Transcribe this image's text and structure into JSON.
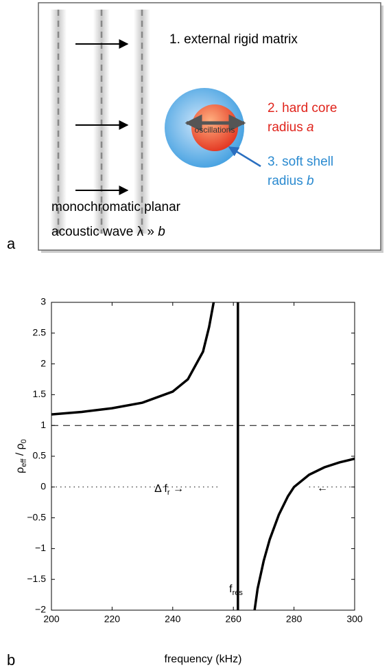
{
  "diagram": {
    "panel_label": "a",
    "matrix_label": "1. external rigid matrix",
    "core_label": "2. hard core",
    "core_radius": {
      "text": "radius",
      "var": "a"
    },
    "shell_label": "3. soft shell",
    "shell_radius": {
      "text": "radius",
      "var": "b"
    },
    "oscillations": "oscillations",
    "wave_line1": "monochromatic planar",
    "wave_line2": {
      "text": "acoustic wave λ »",
      "var": "b"
    }
  },
  "chart_data": {
    "type": "line",
    "panel_label": "b",
    "x_label": "frequency (kHz)",
    "y_label": {
      "main": "ρ",
      "sub": "eff",
      "mid": " / ρ",
      "sub2": "0"
    },
    "series": [
      {
        "x": [
          200,
          210,
          220,
          230,
          240,
          245,
          250,
          252,
          253.5,
          260,
          267,
          268,
          270,
          272,
          275,
          278,
          280,
          285,
          290,
          295,
          300
        ],
        "values": [
          1.18,
          1.22,
          1.28,
          1.37,
          1.55,
          1.75,
          2.2,
          2.6,
          3,
          null,
          -2,
          -1.65,
          -1.2,
          -0.85,
          -0.45,
          -0.15,
          0,
          0.2,
          0.32,
          0.4,
          0.46
        ],
        "color": "#000000",
        "style": "solid"
      },
      {
        "x": [
          261.5,
          261.5
        ],
        "values": [
          -2,
          3
        ],
        "color": "#000000",
        "style": "solid"
      },
      {
        "x": [
          200,
          300
        ],
        "values": [
          1,
          1
        ],
        "color": "#000000",
        "style": "dashed"
      },
      {
        "x": [
          200,
          255,
          270,
          285,
          300
        ],
        "values": [
          0,
          0,
          null,
          0,
          0
        ],
        "color": "#000000",
        "style": "dotted"
      }
    ],
    "annotations": [
      {
        "text": "Δ f",
        "sub": "r",
        "suffix": " →"
      },
      {
        "text": "f",
        "sub": "res"
      },
      {
        "text": "←"
      }
    ],
    "xlim": [
      200,
      300
    ],
    "ylim": [
      -2,
      3
    ],
    "xticks": [
      200,
      220,
      240,
      260,
      280,
      300
    ],
    "yticks": [
      {
        "value": -2,
        "label": "−2"
      },
      {
        "value": -1.5,
        "label": "−1.5"
      },
      {
        "value": -1,
        "label": "−1"
      },
      {
        "value": -0.5,
        "label": "−0.5"
      },
      0,
      0.5,
      1,
      1.5,
      2,
      2.5,
      3
    ]
  }
}
